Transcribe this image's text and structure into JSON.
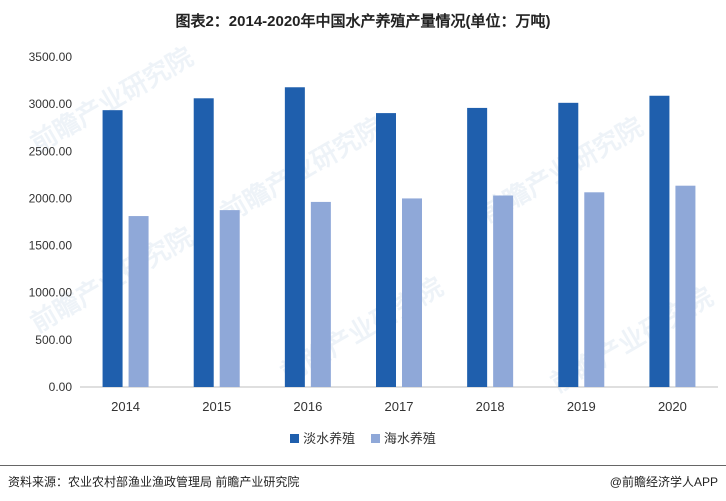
{
  "title": "图表2：2014-2020年中国水产养殖产量情况(单位：万吨)",
  "footer": {
    "source": "资料来源：农业农村部渔业渔政管理局 前瞻产业研究院",
    "brand": "@前瞻经济学人APP"
  },
  "watermark": {
    "text": "前瞻产业研究院"
  },
  "colors": {
    "series_1": "#1f5fad",
    "series_2": "#8fa8d8",
    "axis": "#bfbfbf",
    "grid": "#d9d9d9",
    "tick_text": "#333333"
  },
  "chart_data": {
    "type": "bar",
    "title": "图表2：2014-2020年中国水产养殖产量情况(单位：万吨)",
    "categories": [
      "2014",
      "2015",
      "2016",
      "2017",
      "2018",
      "2019",
      "2020"
    ],
    "series": [
      {
        "name": "淡水养殖",
        "values": [
          2936,
          3062,
          3179,
          2905,
          2960,
          3014,
          3089
        ]
      },
      {
        "name": "海水养殖",
        "values": [
          1813,
          1876,
          1963,
          2000,
          2031,
          2065,
          2135
        ]
      }
    ],
    "y_ticks": [
      "0.00",
      "500.00",
      "1000.00",
      "1500.00",
      "2000.00",
      "2500.00",
      "3000.00",
      "3500.00"
    ],
    "ylim": [
      0,
      3500
    ],
    "xlabel": "",
    "ylabel": "",
    "grid": false,
    "legend_position": "bottom"
  }
}
